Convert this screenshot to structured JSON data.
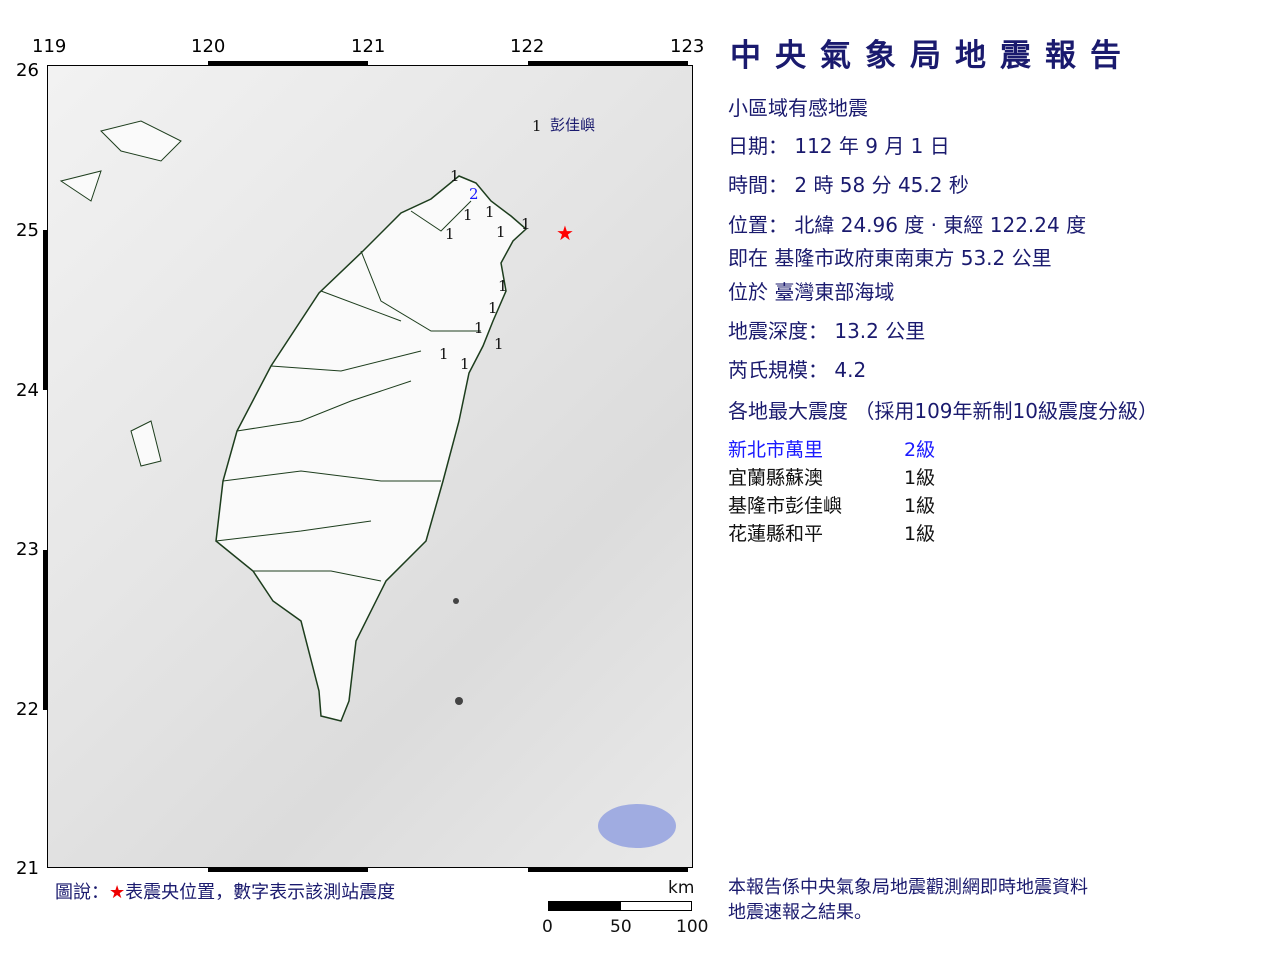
{
  "map": {
    "lon_ticks": [
      "119",
      "120",
      "121",
      "122",
      "123"
    ],
    "lat_ticks": [
      "26",
      "25",
      "24",
      "23",
      "22",
      "21"
    ],
    "island_label": "彭佳嶼",
    "stations": [
      "1",
      "2",
      "1",
      "1",
      "1",
      "1",
      "1",
      "1",
      "1",
      "1",
      "1",
      "1",
      "1",
      "1"
    ],
    "epicenter_color": "#ff0000",
    "legend": {
      "prefix": "圖說：",
      "star": "★",
      "text": "表震央位置，數字表示該測站震度"
    },
    "scale": {
      "unit": "km",
      "labels": [
        "0",
        "50",
        "100"
      ]
    }
  },
  "report": {
    "title": "中央氣象局地震報告",
    "type": "小區域有感地震",
    "date": "日期：  112  年  9  月  1  日",
    "time": "時間：  2  時  58  分  45.2  秒",
    "location": "位置：  北緯  24.96  度 · 東經  122.24  度",
    "relative": "即在  基隆市政府東南東方  53.2  公里",
    "region": "位於  臺灣東部海域",
    "depth": "地震深度：  13.2  公里",
    "magnitude": "芮氏規模：  4.2",
    "intensity_header": "各地最大震度 （採用109年新制10級震度分級）",
    "intensities": [
      {
        "place": "新北市萬里",
        "level": "2級",
        "color": "#1a1aff"
      },
      {
        "place": "宜蘭縣蘇澳",
        "level": "1級"
      },
      {
        "place": "基隆市彭佳嶼",
        "level": "1級"
      },
      {
        "place": "花蓮縣和平",
        "level": "1級"
      }
    ],
    "footer": [
      "本報告係中央氣象局地震觀測網即時地震資料",
      "地震速報之結果。"
    ]
  }
}
